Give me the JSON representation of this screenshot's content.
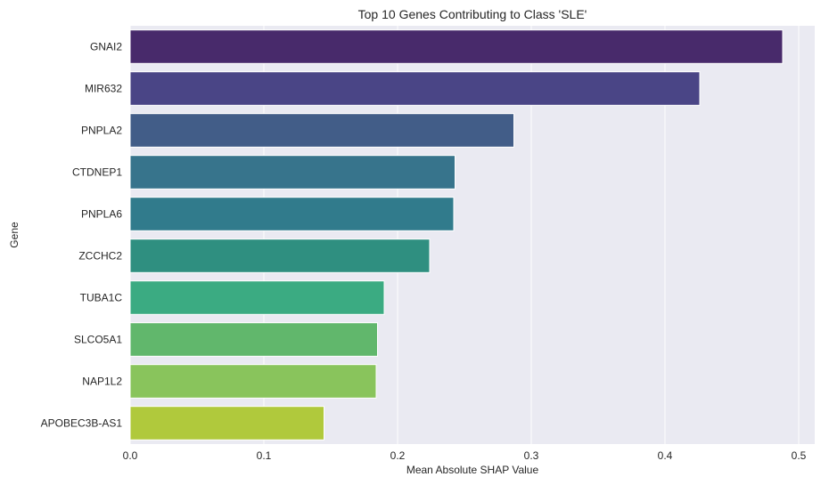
{
  "chart_data": {
    "type": "bar",
    "orientation": "horizontal",
    "title": "Top 10 Genes Contributing to Class 'SLE'",
    "xlabel": "Mean Absolute SHAP Value",
    "ylabel": "Gene",
    "xlim": [
      0,
      0.512
    ],
    "x_ticks": [
      0.0,
      0.1,
      0.2,
      0.3,
      0.4,
      0.5
    ],
    "x_tick_labels": [
      "0.0",
      "0.1",
      "0.2",
      "0.3",
      "0.4",
      "0.5"
    ],
    "grid": true,
    "palette": "viridis",
    "categories": [
      "GNAI2",
      "MIR632",
      "PNPLA2",
      "CTDNEP1",
      "PNPLA6",
      "ZCCHC2",
      "TUBA1C",
      "SLCO5A1",
      "NAP1L2",
      "APOBEC3B-AS1"
    ],
    "values": [
      0.488,
      0.426,
      0.287,
      0.243,
      0.242,
      0.224,
      0.19,
      0.185,
      0.184,
      0.145
    ],
    "colors": [
      "#482a6b",
      "#4a4586",
      "#425d88",
      "#37748c",
      "#317b8c",
      "#2f8f80",
      "#3bab82",
      "#61b76c",
      "#89c45c",
      "#b0c93c"
    ]
  }
}
